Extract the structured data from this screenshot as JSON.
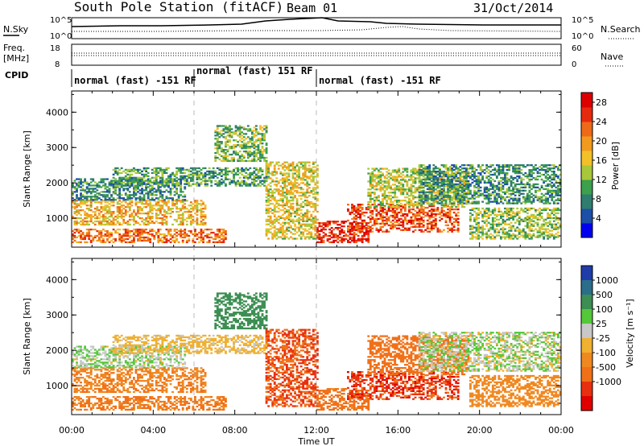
{
  "header": {
    "station": "South Pole Station (fitACF)",
    "beam": "Beam 01",
    "date": "31/Oct/2014"
  },
  "noise_panel": {
    "left_label": "N.Sky",
    "right_label": "N.Search",
    "left_ticks": [
      "10^5",
      "10^0"
    ],
    "right_ticks": [
      "10^5",
      "10^0"
    ]
  },
  "freq_panel": {
    "left_label_1": "Freq.",
    "left_label_2": "[MHz]",
    "right_label": "Nave",
    "left_ticks": [
      "18",
      "8"
    ],
    "right_ticks": [
      "60",
      "0"
    ]
  },
  "cpid": {
    "label": "CPID",
    "modes": [
      {
        "label": "normal (fast) -151 RF",
        "start": 0,
        "end": 6
      },
      {
        "label": "normal (fast) 151 RF",
        "start": 6,
        "end": 12
      },
      {
        "label": "normal (fast) -151 RF",
        "start": 12,
        "end": 24
      }
    ]
  },
  "power_panel": {
    "ylabel": "Slant Range [km]",
    "yticks": [
      "4000",
      "3000",
      "2000",
      "1000"
    ],
    "colorbar_label": "Power [dB]",
    "colorbar_ticks": [
      "28",
      "24",
      "20",
      "16",
      "12",
      "8",
      "4"
    ],
    "colors": [
      "#0000ee",
      "#1c4fa8",
      "#2e7d6e",
      "#3ca04c",
      "#a8c83a",
      "#f2c028",
      "#f29a20",
      "#ee6a18",
      "#e62a10",
      "#dd0000"
    ]
  },
  "velocity_panel": {
    "ylabel": "Slant Range [km]",
    "yticks": [
      "4000",
      "3000",
      "2000",
      "1000"
    ],
    "colorbar_label": "Velocity [m s⁻¹]",
    "colorbar_ticks": [
      "1000",
      "500",
      "100",
      "25",
      "-25",
      "-100",
      "-500",
      "-1000"
    ],
    "colors": [
      "#1f3ca8",
      "#2b6e8a",
      "#3c8e52",
      "#55c83a",
      "#c8c8c8",
      "#f0b030",
      "#f08820",
      "#f07018",
      "#e83010",
      "#e00000"
    ]
  },
  "xaxis": {
    "label": "Time UT",
    "ticks": [
      "00:00",
      "04:00",
      "08:00",
      "12:00",
      "16:00",
      "20:00",
      "00:00"
    ]
  },
  "chart_data": {
    "type": "heatmap",
    "title": "South Pole Station (fitACF)",
    "panels": [
      "Power [dB]",
      "Velocity [m s⁻¹]"
    ],
    "xlabel": "Time UT",
    "ylabel": "Slant Range [km]",
    "xlim": [
      0,
      24
    ],
    "ylim": [
      180,
      4600
    ],
    "power_range": [
      0,
      30
    ],
    "velocity_range": [
      -1000,
      1000
    ],
    "bands": [
      {
        "t0": 0.0,
        "t1": 7.5,
        "r0": 300,
        "r1": 700,
        "power": 22,
        "velocity": -320
      },
      {
        "t0": 0.0,
        "t1": 6.5,
        "r0": 800,
        "r1": 1500,
        "power": 18,
        "velocity": -260
      },
      {
        "t0": 0.0,
        "t1": 5.5,
        "r0": 1500,
        "r1": 2100,
        "power": 8,
        "velocity": 10
      },
      {
        "t0": 2.0,
        "t1": 9.5,
        "r0": 1900,
        "r1": 2400,
        "power": 10,
        "velocity": -30
      },
      {
        "t0": 7.0,
        "t1": 9.5,
        "r0": 2600,
        "r1": 3600,
        "power": 12,
        "velocity": 90
      },
      {
        "t0": 9.5,
        "t1": 12.0,
        "r0": 400,
        "r1": 2600,
        "power": 16,
        "velocity": -700
      },
      {
        "t0": 12.0,
        "t1": 14.5,
        "r0": 300,
        "r1": 900,
        "power": 26,
        "velocity": -420
      },
      {
        "t0": 13.5,
        "t1": 19.0,
        "r0": 600,
        "r1": 1400,
        "power": 24,
        "velocity": -820
      },
      {
        "t0": 14.5,
        "t1": 19.5,
        "r0": 1300,
        "r1": 2400,
        "power": 14,
        "velocity": -500
      },
      {
        "t0": 17.0,
        "t1": 24.0,
        "r0": 1400,
        "r1": 2500,
        "power": 9,
        "velocity": 5
      },
      {
        "t0": 19.5,
        "t1": 24.0,
        "r0": 400,
        "r1": 1300,
        "power": 13,
        "velocity": -150
      }
    ]
  }
}
